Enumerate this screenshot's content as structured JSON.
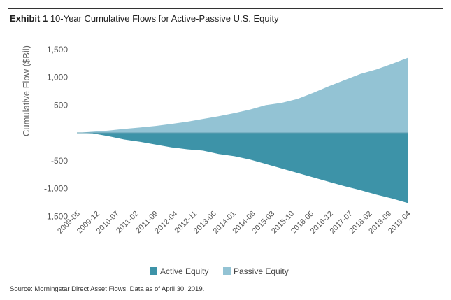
{
  "header": {
    "exhibit": "Exhibit 1",
    "title": "10-Year Cumulative Flows for Active-Passive U.S. Equity"
  },
  "footer": {
    "source": "Source: Morningstar Direct Asset Flows. Data as of April 30, 2019."
  },
  "colors": {
    "active": "#3d93a8",
    "passive": "#93c3d4",
    "zero_line": "#5f9fb2"
  },
  "chart_data": {
    "type": "area",
    "title": "10-Year Cumulative Flows for Active-Passive U.S. Equity",
    "xlabel": "",
    "ylabel": "Cumulative Flow ($Bil)",
    "ylim": [
      -1600,
      1600
    ],
    "yticks": [
      1500,
      1000,
      500,
      -500,
      -1000,
      -1500
    ],
    "ytick_labels": [
      "1,500",
      "1,000",
      "500",
      "-500",
      "-1,000",
      "-1,500"
    ],
    "xtick_labels": [
      "2009-05",
      "2009-12",
      "2010-07",
      "2011-02",
      "2011-09",
      "2012-04",
      "2012-11",
      "2013-06",
      "2014-01",
      "2014-08",
      "2015-03",
      "2015-10",
      "2016-05",
      "2016-12",
      "2017-07",
      "2018-02",
      "2018-09",
      "2019-04"
    ],
    "legend": {
      "position": "bottom",
      "entries": [
        "Active Equity",
        "Passive Equity"
      ]
    },
    "grid": false,
    "series": [
      {
        "name": "Passive Equity",
        "values": [
          0,
          20,
          40,
          70,
          95,
          125,
          160,
          200,
          250,
          300,
          355,
          420,
          500,
          540,
          610,
          720,
          840,
          950,
          1060,
          1140,
          1240,
          1350
        ]
      },
      {
        "name": "Active Equity",
        "values": [
          0,
          -10,
          -60,
          -120,
          -160,
          -210,
          -260,
          -295,
          -320,
          -380,
          -420,
          -480,
          -560,
          -640,
          -720,
          -800,
          -880,
          -960,
          -1030,
          -1110,
          -1180,
          -1260
        ]
      }
    ]
  }
}
